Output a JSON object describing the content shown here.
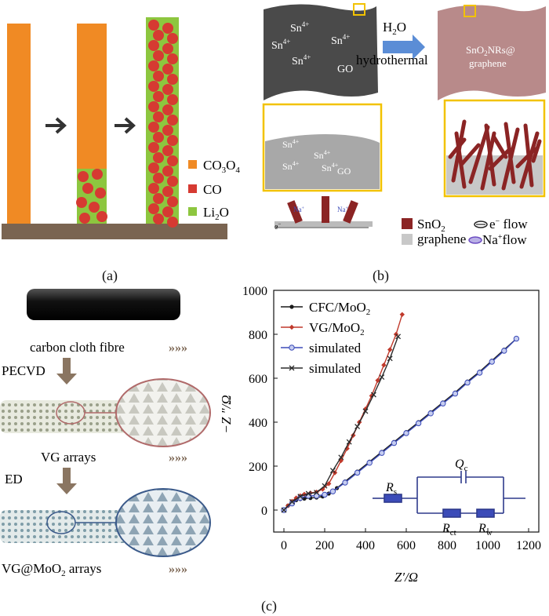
{
  "panel_a": {
    "caption": "(a)",
    "legend": {
      "co3o4_base": "CO",
      "co3o4_sub1": "3",
      "co3o4_mid": "O",
      "co3o4_sub2": "4",
      "co": "CO",
      "li2o_base": "Li",
      "li2o_sub": "2",
      "li2o_end": "O"
    },
    "colors": {
      "co3o4": "#f08a24",
      "co": "#d63a32",
      "li2o": "#8dc63f",
      "substrate": "#7a6451"
    }
  },
  "panel_b": {
    "caption": "(b)",
    "sn_ion": "Sn",
    "sn_charge": "4+",
    "go": "GO",
    "h2o_base": "H",
    "h2o_sub": "2",
    "h2o_end": "O",
    "hydrothermal": "hydrothermal",
    "product_line1_a": "SnO",
    "product_line1_sub": "2",
    "product_line1_b": "NRs@",
    "product_line2": "graphene",
    "na_ion": "Na",
    "na_charge": "+",
    "e_label": "e",
    "legend": {
      "sno2_base": "SnO",
      "sno2_sub": "2",
      "graphene": "graphene",
      "e_flow_a": "e",
      "e_flow_sup": "−",
      "e_flow_b": " flow",
      "na_flow_a": "Na",
      "na_flow_sup": "+",
      "na_flow_b": "flow"
    }
  },
  "panel_c": {
    "caption": "(c)",
    "schematic": {
      "carbon_cloth": "carbon cloth fibre",
      "pecvd": "PECVD",
      "vg_arrays": "VG arrays",
      "ed": "ED",
      "vg_moo2_a": "VG@MoO",
      "vg_moo2_sub": "2",
      "vg_moo2_b": " arrays"
    },
    "circuit": {
      "rs": "R",
      "rs_sub": "s",
      "qc": "Q",
      "qc_sub": "c",
      "rct": "R",
      "rct_sub": "ct",
      "rw": "R",
      "rw_sub": "w"
    }
  },
  "chart_data": {
    "type": "scatter",
    "xlabel": "Z′/Ω",
    "ylabel": "−Z ″/Ω",
    "xlim": [
      -50,
      1250
    ],
    "ylim": [
      -100,
      1000
    ],
    "x_ticks": [
      0,
      200,
      400,
      600,
      800,
      1000,
      1200
    ],
    "y_ticks": [
      0,
      200,
      400,
      600,
      800,
      1000
    ],
    "legend_position": "top-left",
    "series": [
      {
        "name": "CFC/MoO2",
        "label_base": "CFC/MoO",
        "label_sub": "2",
        "color": "#1a1a1a",
        "marker": "dot",
        "x": [
          0,
          20,
          40,
          60,
          80,
          100,
          130,
          160,
          190,
          220,
          260,
          300,
          360,
          420,
          480,
          540,
          600,
          660,
          720,
          780,
          840,
          900,
          960,
          1020,
          1080,
          1140
        ],
        "y": [
          0,
          20,
          35,
          45,
          50,
          52,
          55,
          57,
          62,
          75,
          100,
          130,
          175,
          220,
          265,
          310,
          355,
          400,
          445,
          490,
          535,
          585,
          630,
          680,
          730,
          780
        ]
      },
      {
        "name": "VG/MoO2",
        "label_base": "VG/MoO",
        "label_sub": "2",
        "color": "#c0392b",
        "marker": "diamond",
        "x": [
          0,
          20,
          40,
          60,
          80,
          100,
          130,
          160,
          190,
          220,
          250,
          280,
          310,
          340,
          370,
          400,
          430,
          460,
          490,
          520,
          550,
          580
        ],
        "y": [
          0,
          20,
          40,
          55,
          65,
          72,
          78,
          82,
          95,
          120,
          170,
          225,
          280,
          340,
          400,
          460,
          520,
          590,
          660,
          730,
          800,
          890
        ]
      },
      {
        "name": "simulated",
        "color": "#3b4bb8",
        "marker": "circle",
        "x": [
          0,
          40,
          80,
          120,
          160,
          200,
          240,
          300,
          360,
          420,
          480,
          540,
          600,
          660,
          720,
          780,
          840,
          900,
          960,
          1020,
          1080,
          1140
        ],
        "y": [
          0,
          30,
          55,
          65,
          65,
          70,
          85,
          125,
          170,
          215,
          260,
          305,
          350,
          395,
          440,
          485,
          530,
          580,
          625,
          675,
          725,
          780
        ]
      },
      {
        "name": "simulated",
        "color": "#2b2b2b",
        "marker": "cross",
        "x": [
          0,
          40,
          80,
          120,
          160,
          200,
          240,
          280,
          320,
          360,
          400,
          440,
          480,
          520,
          560
        ],
        "y": [
          0,
          38,
          62,
          75,
          80,
          110,
          180,
          240,
          310,
          380,
          450,
          525,
          605,
          690,
          790
        ]
      }
    ]
  }
}
